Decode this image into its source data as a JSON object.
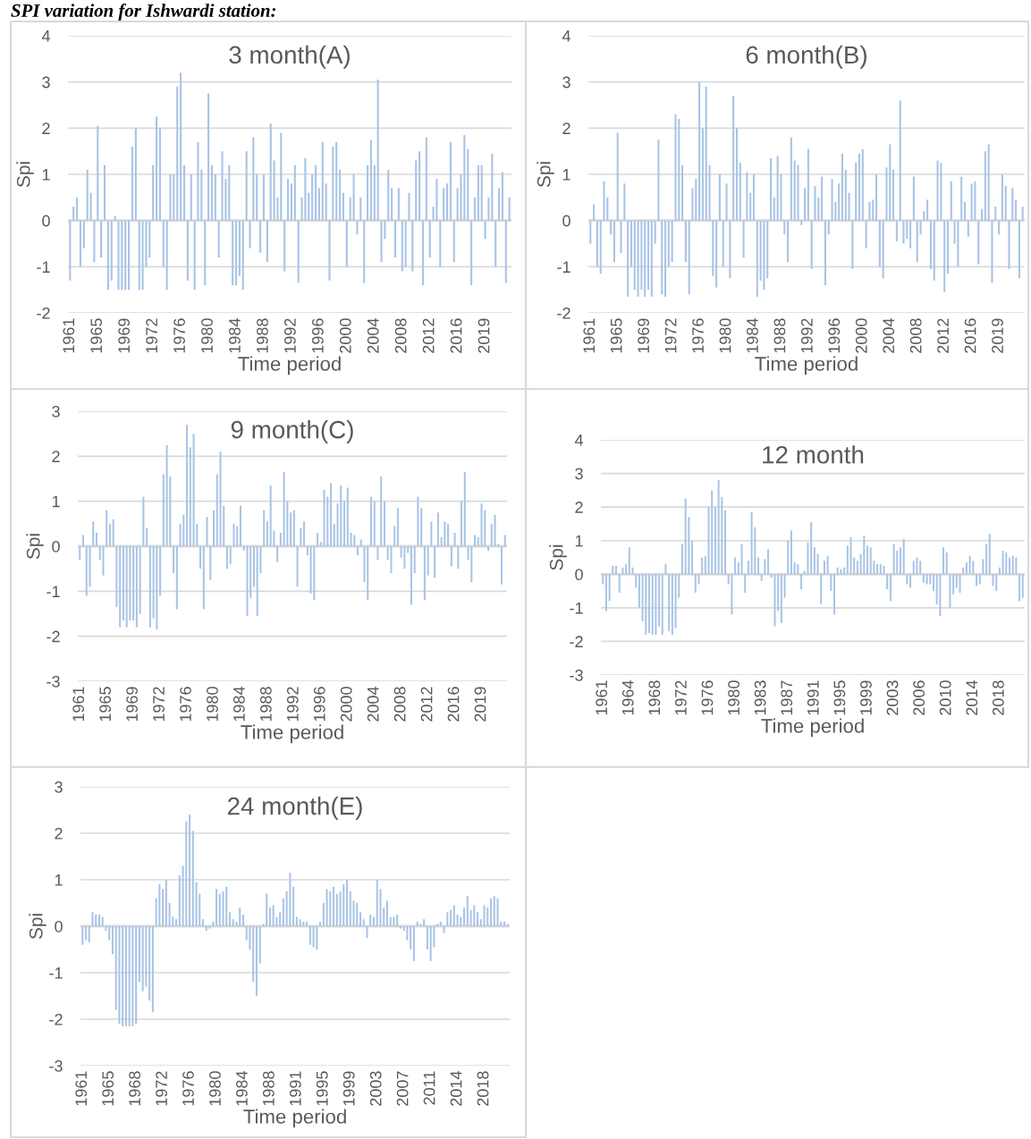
{
  "chart_data": [
    {
      "type": "bar",
      "title": "3 month(A)",
      "xlabel": "Time period",
      "ylabel": "Spi",
      "annotations": [
        "SPI variation for Ishwardi station:"
      ],
      "color": "#a9c4e6",
      "ylim": [
        -2,
        4
      ],
      "yticks": [
        -2,
        -1,
        0,
        1,
        2,
        3,
        4
      ],
      "grid": "y",
      "categories": [
        "1961",
        null,
        null,
        null,
        null,
        null,
        null,
        null,
        "1965",
        null,
        null,
        null,
        null,
        null,
        null,
        null,
        "1969",
        null,
        null,
        null,
        null,
        null,
        null,
        null,
        "1972",
        null,
        null,
        null,
        null,
        null,
        null,
        null,
        "1976",
        null,
        null,
        null,
        null,
        null,
        null,
        null,
        "1980",
        null,
        null,
        null,
        null,
        null,
        null,
        null,
        "1984",
        null,
        null,
        null,
        null,
        null,
        null,
        null,
        "1988",
        null,
        null,
        null,
        null,
        null,
        null,
        null,
        "1992",
        null,
        null,
        null,
        null,
        null,
        null,
        null,
        "1996",
        null,
        null,
        null,
        null,
        null,
        null,
        null,
        "2000",
        null,
        null,
        null,
        null,
        null,
        null,
        null,
        "2004",
        null,
        null,
        null,
        null,
        null,
        null,
        null,
        "2008",
        null,
        null,
        null,
        null,
        null,
        null,
        null,
        "2012",
        null,
        null,
        null,
        null,
        null,
        null,
        null,
        "2016",
        null,
        null,
        null,
        null,
        null,
        null,
        null,
        "2019",
        null,
        null,
        null,
        null,
        null,
        null,
        null
      ],
      "values": [
        -1.3,
        0.3,
        0.5,
        -1.0,
        -0.6,
        1.1,
        0.6,
        -0.9,
        2.05,
        -0.8,
        1.2,
        -1.5,
        -1.3,
        0.1,
        -1.5,
        -1.5,
        -1.5,
        -1.5,
        1.6,
        2.0,
        -1.5,
        -1.5,
        -1.0,
        -0.8,
        1.2,
        2.25,
        2.0,
        -1.0,
        -1.5,
        1.0,
        1.0,
        2.9,
        3.2,
        1.2,
        -1.3,
        1.0,
        -1.5,
        1.7,
        1.1,
        -1.4,
        2.75,
        1.2,
        1.0,
        -0.8,
        1.5,
        0.9,
        1.2,
        -1.4,
        -1.4,
        -1.2,
        -1.5,
        1.5,
        -0.6,
        1.8,
        1.0,
        -0.7,
        1.0,
        -0.9,
        2.1,
        1.3,
        0.5,
        1.9,
        -1.1,
        0.9,
        0.8,
        1.2,
        -1.35,
        0.5,
        1.35,
        0.6,
        1.0,
        1.2,
        0.7,
        1.7,
        0.8,
        -1.3,
        1.6,
        1.7,
        1.1,
        0.6,
        -1.0,
        0.5,
        1.0,
        -0.3,
        0.5,
        -1.35,
        1.2,
        1.75,
        1.2,
        3.05,
        -0.9,
        -0.4,
        1.1,
        0.7,
        -0.8,
        0.7,
        -1.1,
        -1.0,
        0.6,
        -1.1,
        1.3,
        1.5,
        -1.4,
        1.8,
        -0.8,
        0.3,
        0.9,
        -1.0,
        0.7,
        0.8,
        1.7,
        -0.9,
        0.7,
        1.0,
        1.85,
        1.55,
        -1.4,
        0.5,
        1.2,
        1.2,
        -0.4,
        0.5,
        1.45,
        -1.0,
        0.7,
        1.05,
        -1.35,
        0.5
      ]
    },
    {
      "type": "bar",
      "title": "6 month(B)",
      "xlabel": "Time period",
      "ylabel": "Spi",
      "color": "#a9c4e6",
      "ylim": [
        -2,
        4
      ],
      "yticks": [
        -2,
        -1,
        0,
        1,
        2,
        3,
        4
      ],
      "grid": "y",
      "categories": [
        "1961",
        null,
        null,
        null,
        null,
        null,
        null,
        null,
        "1965",
        null,
        null,
        null,
        null,
        null,
        null,
        null,
        "1969",
        null,
        null,
        null,
        null,
        null,
        null,
        null,
        "1972",
        null,
        null,
        null,
        null,
        null,
        null,
        null,
        "1976",
        null,
        null,
        null,
        null,
        null,
        null,
        null,
        "1980",
        null,
        null,
        null,
        null,
        null,
        null,
        null,
        "1984",
        null,
        null,
        null,
        null,
        null,
        null,
        null,
        "1988",
        null,
        null,
        null,
        null,
        null,
        null,
        null,
        "1992",
        null,
        null,
        null,
        null,
        null,
        null,
        null,
        "1996",
        null,
        null,
        null,
        null,
        null,
        null,
        null,
        "2000",
        null,
        null,
        null,
        null,
        null,
        null,
        null,
        "2004",
        null,
        null,
        null,
        null,
        null,
        null,
        null,
        "2008",
        null,
        null,
        null,
        null,
        null,
        null,
        null,
        "2012",
        null,
        null,
        null,
        null,
        null,
        null,
        null,
        "2016",
        null,
        null,
        null,
        null,
        null,
        null,
        null,
        "2019",
        null,
        null,
        null,
        null,
        null,
        null,
        null
      ],
      "values": [
        -0.5,
        0.35,
        -1.0,
        -1.15,
        0.85,
        0.5,
        -0.3,
        -0.9,
        1.9,
        -0.7,
        0.8,
        -1.65,
        -1.0,
        -1.5,
        -1.65,
        -1.5,
        -1.65,
        -1.5,
        -1.65,
        -0.5,
        1.75,
        -1.6,
        -1.65,
        -1.0,
        -0.9,
        2.3,
        2.2,
        1.2,
        -0.9,
        -1.6,
        0.7,
        0.9,
        3.0,
        2.0,
        2.9,
        1.2,
        -1.2,
        -1.45,
        1.0,
        -1.0,
        0.8,
        -1.25,
        2.7,
        2.0,
        1.25,
        -0.8,
        1.05,
        0.6,
        1.0,
        -1.65,
        -1.3,
        -1.5,
        -1.25,
        1.35,
        0.5,
        1.4,
        1.0,
        -0.3,
        -0.9,
        1.8,
        1.3,
        1.2,
        -0.1,
        0.7,
        1.55,
        -1.05,
        0.75,
        0.5,
        0.95,
        -1.4,
        -0.3,
        0.9,
        0.4,
        0.8,
        1.45,
        1.1,
        0.6,
        -1.05,
        1.25,
        1.45,
        1.55,
        -0.6,
        0.4,
        0.45,
        1.0,
        -1.0,
        -1.25,
        1.15,
        1.65,
        1.1,
        -0.45,
        2.6,
        -0.5,
        -0.4,
        -0.6,
        0.95,
        -0.9,
        -0.3,
        0.2,
        0.45,
        -1.05,
        -1.3,
        1.3,
        1.25,
        -1.55,
        -1.15,
        0.85,
        -0.5,
        -1.0,
        0.95,
        0.4,
        -0.35,
        0.8,
        0.85,
        -0.95,
        0.25,
        1.5,
        1.65,
        -1.35,
        0.3,
        -0.3,
        1.0,
        0.75,
        -1.05,
        0.7,
        0.45,
        -1.25,
        0.3
      ]
    },
    {
      "type": "bar",
      "title": "9 month(C)",
      "xlabel": "Time period",
      "ylabel": "Spi",
      "color": "#a9c4e6",
      "ylim": [
        -3,
        3
      ],
      "yticks": [
        -3,
        -2,
        -1,
        0,
        1,
        2,
        3
      ],
      "grid": "y",
      "categories": [
        "1961",
        null,
        null,
        null,
        null,
        null,
        null,
        null,
        "1965",
        null,
        null,
        null,
        null,
        null,
        null,
        null,
        "1969",
        null,
        null,
        null,
        null,
        null,
        null,
        null,
        "1972",
        null,
        null,
        null,
        null,
        null,
        null,
        null,
        "1976",
        null,
        null,
        null,
        null,
        null,
        null,
        null,
        "1980",
        null,
        null,
        null,
        null,
        null,
        null,
        null,
        "1984",
        null,
        null,
        null,
        null,
        null,
        null,
        null,
        "1988",
        null,
        null,
        null,
        null,
        null,
        null,
        null,
        "1992",
        null,
        null,
        null,
        null,
        null,
        null,
        null,
        "1996",
        null,
        null,
        null,
        null,
        null,
        null,
        null,
        "2000",
        null,
        null,
        null,
        null,
        null,
        null,
        null,
        "2004",
        null,
        null,
        null,
        null,
        null,
        null,
        null,
        "2008",
        null,
        null,
        null,
        null,
        null,
        null,
        null,
        "2012",
        null,
        null,
        null,
        null,
        null,
        null,
        null,
        "2016",
        null,
        null,
        null,
        null,
        null,
        null,
        null,
        "2019",
        null,
        null,
        null,
        null,
        null,
        null,
        null
      ],
      "values": [
        -0.3,
        0.25,
        -1.1,
        -0.9,
        0.55,
        0.3,
        -0.3,
        -0.65,
        0.8,
        0.5,
        0.6,
        -1.35,
        -1.8,
        -1.65,
        -1.8,
        -1.65,
        -1.65,
        -1.8,
        -1.5,
        1.1,
        0.4,
        -1.8,
        -1.6,
        -1.85,
        -1.1,
        1.6,
        2.25,
        1.55,
        -0.6,
        -1.4,
        0.5,
        0.7,
        2.7,
        2.2,
        2.5,
        0.5,
        -0.5,
        -1.4,
        0.65,
        -0.75,
        0.8,
        1.6,
        2.1,
        0.9,
        -0.5,
        -0.4,
        0.5,
        0.45,
        0.9,
        -0.1,
        -1.55,
        -1.15,
        -0.9,
        -1.55,
        -0.6,
        0.8,
        0.55,
        1.35,
        0.35,
        -0.35,
        0.3,
        1.65,
        1.0,
        0.75,
        0.8,
        -0.9,
        0.4,
        0.55,
        -0.2,
        -1.05,
        -1.2,
        0.3,
        0.1,
        1.25,
        1.1,
        1.4,
        0.5,
        0.95,
        1.35,
        1.0,
        1.3,
        0.3,
        0.25,
        -0.2,
        0.15,
        -0.8,
        -1.2,
        1.1,
        1.0,
        -0.3,
        1.55,
        1.0,
        -0.3,
        -0.6,
        0.45,
        0.85,
        -0.25,
        -0.5,
        -0.15,
        -1.3,
        -0.6,
        1.1,
        0.85,
        -1.2,
        -0.65,
        0.55,
        -0.7,
        0.75,
        0.2,
        0.55,
        0.5,
        -0.45,
        0.3,
        -0.5,
        1.0,
        1.65,
        -0.3,
        -0.8,
        0.25,
        0.2,
        0.95,
        0.8,
        -0.1,
        0.5,
        0.7,
        0.05,
        -0.85,
        0.25
      ]
    },
    {
      "type": "bar",
      "title": "12 month",
      "xlabel": "Time period",
      "ylabel": "Spi",
      "color": "#a9c4e6",
      "ylim": [
        -3,
        4
      ],
      "yticks": [
        -3,
        -2,
        -1,
        0,
        1,
        2,
        3,
        4
      ],
      "grid": "y",
      "categories": [
        "1961",
        null,
        null,
        null,
        null,
        null,
        null,
        null,
        "1964",
        null,
        null,
        null,
        null,
        null,
        null,
        null,
        "1968",
        null,
        null,
        null,
        null,
        null,
        null,
        null,
        "1972",
        null,
        null,
        null,
        null,
        null,
        null,
        null,
        "1976",
        null,
        null,
        null,
        null,
        null,
        null,
        null,
        "1980",
        null,
        null,
        null,
        null,
        null,
        null,
        null,
        "1983",
        null,
        null,
        null,
        null,
        null,
        null,
        null,
        "1987",
        null,
        null,
        null,
        null,
        null,
        null,
        null,
        "1991",
        null,
        null,
        null,
        null,
        null,
        null,
        null,
        "1995",
        null,
        null,
        null,
        null,
        null,
        null,
        null,
        "1999",
        null,
        null,
        null,
        null,
        null,
        null,
        null,
        "2003",
        null,
        null,
        null,
        null,
        null,
        null,
        null,
        "2006",
        null,
        null,
        null,
        null,
        null,
        null,
        null,
        "2010",
        null,
        null,
        null,
        null,
        null,
        null,
        null,
        "2014",
        null,
        null,
        null,
        null,
        null,
        null,
        null,
        "2018",
        null,
        null,
        null,
        null,
        null,
        null,
        null
      ],
      "values": [
        -0.3,
        -1.1,
        -0.8,
        0.25,
        0.25,
        -0.55,
        0.2,
        0.3,
        0.8,
        0.2,
        -0.4,
        -1.0,
        -1.4,
        -1.8,
        -1.75,
        -1.8,
        -1.8,
        -1.55,
        -1.8,
        0.3,
        -1.7,
        -1.8,
        -1.6,
        -0.7,
        0.9,
        2.25,
        1.7,
        1.0,
        -0.55,
        -0.3,
        0.5,
        0.55,
        2.0,
        2.5,
        2.0,
        2.8,
        2.3,
        1.9,
        -0.3,
        -1.2,
        0.5,
        0.35,
        0.9,
        -0.55,
        0.4,
        1.85,
        1.4,
        0.5,
        -0.2,
        0.45,
        0.75,
        -0.1,
        -1.55,
        -1.1,
        -1.45,
        -0.7,
        1.0,
        1.3,
        0.35,
        0.3,
        -0.45,
        0.1,
        0.95,
        1.55,
        0.8,
        0.6,
        -0.9,
        0.4,
        0.55,
        -0.5,
        -1.2,
        0.2,
        0.15,
        0.2,
        0.85,
        1.1,
        0.5,
        0.4,
        0.6,
        1.15,
        0.85,
        0.8,
        0.4,
        0.3,
        0.3,
        0.25,
        -0.45,
        -0.8,
        0.9,
        0.7,
        0.8,
        1.05,
        -0.3,
        -0.4,
        0.4,
        0.5,
        0.4,
        -0.25,
        -0.3,
        -0.3,
        -0.5,
        -0.9,
        -1.25,
        0.8,
        0.65,
        -1.0,
        -0.6,
        -0.4,
        -0.55,
        0.2,
        0.35,
        0.55,
        0.4,
        -0.35,
        -0.3,
        0.45,
        0.9,
        1.2,
        -0.35,
        -0.5,
        0.2,
        0.7,
        0.65,
        0.5,
        0.55,
        0.5,
        -0.8,
        -0.7
      ]
    },
    {
      "type": "bar",
      "title": "24 month(E)",
      "xlabel": "Time period",
      "ylabel": "Spi",
      "color": "#a9c4e6",
      "ylim": [
        -3,
        3
      ],
      "yticks": [
        -3,
        -2,
        -1,
        0,
        1,
        2,
        3
      ],
      "grid": "y",
      "categories": [
        "1961",
        null,
        null,
        null,
        null,
        null,
        null,
        null,
        "1965",
        null,
        null,
        null,
        null,
        null,
        null,
        null,
        "1968",
        null,
        null,
        null,
        null,
        null,
        null,
        null,
        "1972",
        null,
        null,
        null,
        null,
        null,
        null,
        null,
        "1976",
        null,
        null,
        null,
        null,
        null,
        null,
        null,
        "1980",
        null,
        null,
        null,
        null,
        null,
        null,
        null,
        "1984",
        null,
        null,
        null,
        null,
        null,
        null,
        null,
        "1988",
        null,
        null,
        null,
        null,
        null,
        null,
        null,
        "1991",
        null,
        null,
        null,
        null,
        null,
        null,
        null,
        "1995",
        null,
        null,
        null,
        null,
        null,
        null,
        null,
        "1999",
        null,
        null,
        null,
        null,
        null,
        null,
        null,
        "2003",
        null,
        null,
        null,
        null,
        null,
        null,
        null,
        "2007",
        null,
        null,
        null,
        null,
        null,
        null,
        null,
        "2011",
        null,
        null,
        null,
        null,
        null,
        null,
        null,
        "2014",
        null,
        null,
        null,
        null,
        null,
        null,
        null,
        "2018",
        null,
        null,
        null,
        null,
        null,
        null,
        null
      ],
      "values": [
        -0.4,
        -0.3,
        -0.35,
        0.3,
        0.25,
        0.25,
        0.2,
        -0.1,
        -0.3,
        -0.6,
        -1.8,
        -2.1,
        -2.15,
        -2.15,
        -2.15,
        -2.15,
        -2.1,
        -1.2,
        -1.4,
        -1.3,
        -1.6,
        -1.85,
        0.6,
        0.9,
        0.8,
        1.0,
        0.5,
        0.2,
        0.15,
        1.1,
        1.3,
        2.25,
        2.4,
        2.05,
        0.95,
        0.7,
        0.15,
        -0.1,
        -0.05,
        0.1,
        0.8,
        0.7,
        0.75,
        0.85,
        0.3,
        0.15,
        0.1,
        0.4,
        0.25,
        -0.3,
        -0.5,
        -1.2,
        -1.5,
        -0.8,
        0.05,
        0.7,
        0.4,
        0.45,
        0.2,
        0.3,
        0.6,
        0.75,
        1.15,
        0.85,
        0.2,
        0.15,
        0.1,
        0.1,
        -0.4,
        -0.45,
        -0.5,
        0.1,
        0.5,
        0.8,
        0.75,
        0.85,
        0.7,
        0.75,
        0.9,
        1.0,
        0.75,
        0.55,
        0.5,
        0.3,
        0.15,
        -0.25,
        0.25,
        0.2,
        1.0,
        0.8,
        0.4,
        0.55,
        0.2,
        0.2,
        0.25,
        -0.05,
        -0.1,
        -0.3,
        -0.5,
        -0.75,
        0.1,
        0.05,
        0.15,
        -0.5,
        -0.75,
        -0.45,
        0.05,
        0.1,
        -0.15,
        0.3,
        0.35,
        0.45,
        0.25,
        0.2,
        0.4,
        0.65,
        0.35,
        0.45,
        0.3,
        0.15,
        0.45,
        0.4,
        0.6,
        0.65,
        0.6,
        0.1,
        0.1,
        0.05
      ]
    }
  ]
}
